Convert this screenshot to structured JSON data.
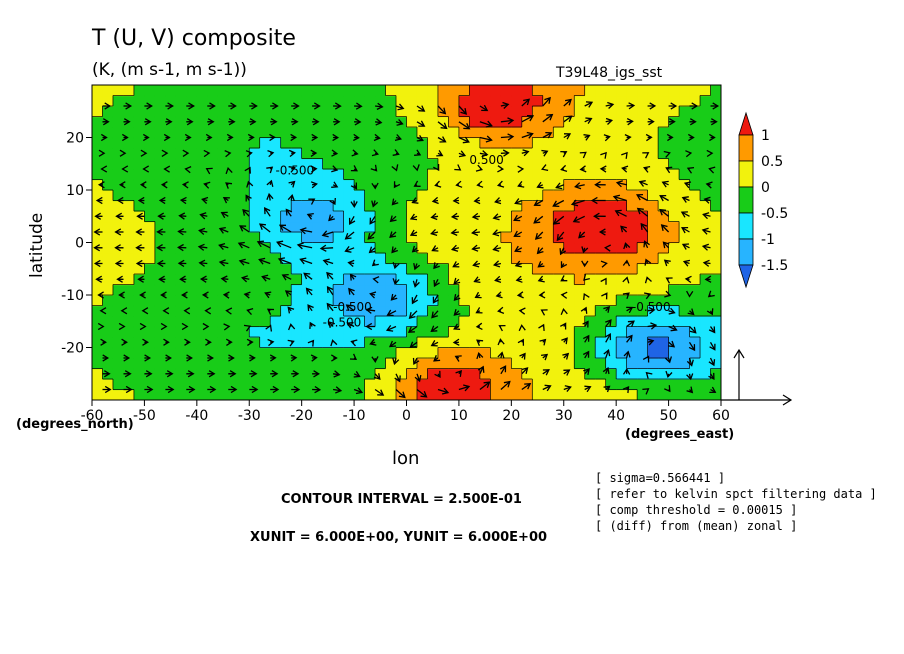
{
  "chart_data": {
    "type": "heatmap",
    "title": "T (U, V) composite",
    "subtitle": "(K, (m s-1, m s-1))",
    "run_label": "T39L48_igs_sst",
    "xlabel": "lon",
    "ylabel": "latitude",
    "x_unit_label": "(degrees_east)",
    "y_unit_label": "(degrees_north)",
    "xlim": [
      -60,
      60
    ],
    "ylim": [
      -30,
      30
    ],
    "x_ticks": [
      -60,
      -50,
      -40,
      -30,
      -20,
      -10,
      0,
      10,
      20,
      30,
      40,
      50,
      60
    ],
    "y_ticks": [
      -20,
      -10,
      0,
      10,
      20
    ],
    "colorbar": {
      "levels": [
        -1.5,
        -1,
        -0.5,
        0,
        0.5,
        1
      ],
      "tick_labels": [
        "-1.5",
        "-1",
        "-0.5",
        "0",
        "0.5",
        "1"
      ],
      "colors": [
        "#1f64e6",
        "#27b4ff",
        "#19e6ff",
        "#18cc18",
        "#f2f20d",
        "#ff9a00",
        "#ee1a10"
      ]
    },
    "contour_labels": [
      {
        "text": "0.500",
        "lon": 12,
        "lat": 15
      },
      {
        "text": "-0.500",
        "lon": -25,
        "lat": 13
      },
      {
        "text": "-0.500",
        "lon": -14,
        "lat": -13
      },
      {
        "text": "-0.500",
        "lon": -16,
        "lat": -16
      },
      {
        "text": "-0.500",
        "lon": 43,
        "lat": -13
      }
    ],
    "features": [
      {
        "sign": "warm",
        "lon": 17,
        "lat": 26,
        "peak": 1.2
      },
      {
        "sign": "warm",
        "lon": 38,
        "lat": 3,
        "peak": 1.2
      },
      {
        "sign": "warm",
        "lon": 8,
        "lat": -27,
        "peak": 1.2
      },
      {
        "sign": "cool",
        "lon": -5,
        "lat": -10,
        "peak": -1.3
      },
      {
        "sign": "cool",
        "lon": 47,
        "lat": -20,
        "peak": -1.6
      },
      {
        "sign": "cool",
        "lon": -17,
        "lat": 4,
        "peak": -1.1
      }
    ],
    "vector_reference": {
      "xunit": 6.0,
      "yunit": 6.0
    }
  },
  "annotations": {
    "contour_interval": "CONTOUR INTERVAL = 2.500E-01",
    "units_line": "XUNIT = 6.000E+00, YUNIT = 6.000E+00",
    "info_lines": [
      "[ sigma=0.566441 ]",
      "[ refer to kelvin spct filtering data ]",
      "[ comp threshold = 0.00015 ]",
      "[ (diff) from (mean) zonal ]"
    ]
  }
}
